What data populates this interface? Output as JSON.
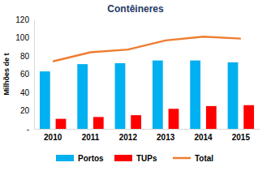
{
  "chart_data": {
    "type": "bar",
    "title": "Contêineres",
    "y_label": "Milhões de t",
    "categories": [
      "2010",
      "2011",
      "2012",
      "2013",
      "2014",
      "2015"
    ],
    "series": [
      {
        "name": "Portos",
        "color": "#00b0f0",
        "type": "bar",
        "values": [
          63,
          71,
          72,
          75,
          75,
          73
        ]
      },
      {
        "name": "TUPs",
        "color": "#ff0000",
        "type": "bar",
        "values": [
          11,
          13,
          15,
          22,
          25,
          26
        ]
      },
      {
        "name": "Total",
        "color": "#ed7d31",
        "type": "line",
        "values": [
          74,
          84,
          87,
          97,
          101,
          99
        ]
      }
    ],
    "ylim": [
      0,
      120
    ],
    "yticks": [
      {
        "value": 0,
        "label": "-"
      },
      20,
      40,
      60,
      80,
      100,
      120
    ],
    "grid": false,
    "legend": "bottom"
  }
}
